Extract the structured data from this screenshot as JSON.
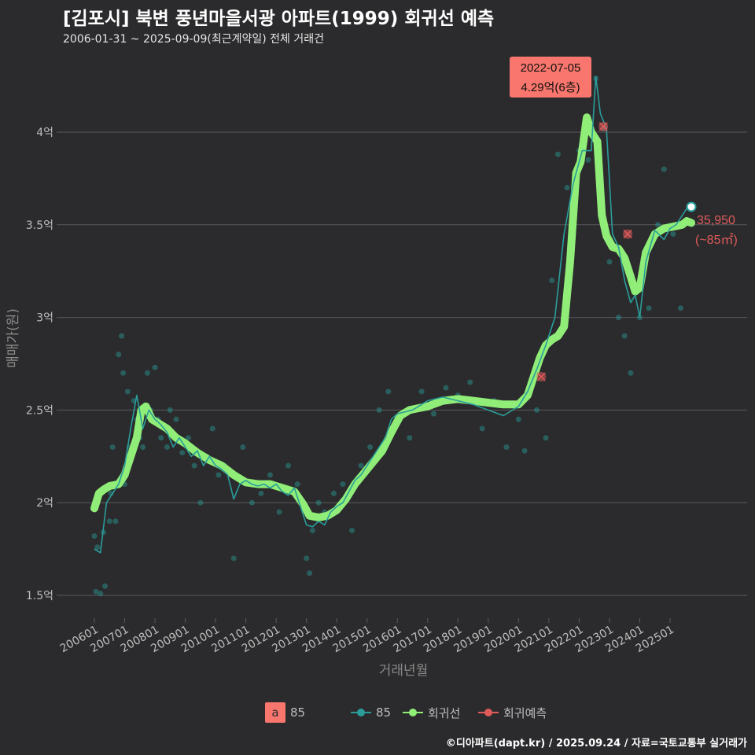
{
  "header": {
    "title": "[김포시] 북변 풍년마을서광 아파트(1999) 회귀선 예측",
    "subtitle": "2006-01-31 ~ 2025-09-09(최근계약일) 전체 거래건"
  },
  "caption": "©디아파트(dapt.kr) / 2025.09.24 / 자료=국토교통부 실거래가",
  "annotations": {
    "peak_date": "2022-07-05",
    "peak_price": "4.29억(6층)",
    "last_price": "35,950",
    "last_area": "(~85㎡)"
  },
  "legend": {
    "a_letter": "a",
    "a_label": "85",
    "series_85": "85",
    "regression": "회귀선",
    "forecast": "회귀예측"
  },
  "colors": {
    "background": "#2b2b2d",
    "grid": "#5a5a5c",
    "series_85": "#2a9d9a",
    "regression": "#90ee78",
    "forecast": "#e05a5a",
    "label_box": "#f8766d"
  },
  "chart_data": {
    "type": "line",
    "title": "[김포시] 북변 풍년마을서광 아파트(1999) 회귀선 예측",
    "xlabel": "거래년월",
    "ylabel": "매매가(원)",
    "ylim": [
      1.4,
      4.5
    ],
    "y_ticks": [
      1.5,
      2,
      2.5,
      3,
      3.5,
      4
    ],
    "y_tick_labels": [
      "1.5억",
      "2억",
      "2.5억",
      "3억",
      "3.5억",
      "4억"
    ],
    "x_ticks": [
      "200601",
      "200701",
      "200801",
      "200901",
      "201001",
      "201101",
      "201201",
      "201301",
      "201401",
      "201501",
      "201601",
      "201701",
      "201801",
      "201901",
      "202001",
      "202101",
      "202201",
      "202301",
      "202401",
      "202501"
    ],
    "series": [
      {
        "name": "회귀선",
        "x": [
          2006.0,
          2006.15,
          2006.3,
          2006.5,
          2006.8,
          2007.0,
          2007.2,
          2007.4,
          2007.55,
          2007.7,
          2007.9,
          2008.1,
          2008.4,
          2008.7,
          2009.0,
          2009.4,
          2009.8,
          2010.2,
          2010.6,
          2011.0,
          2011.4,
          2011.8,
          2012.2,
          2012.6,
          2012.9,
          2013.1,
          2013.4,
          2013.7,
          2014.0,
          2014.3,
          2014.6,
          2014.9,
          2015.2,
          2015.5,
          2015.8,
          2016.1,
          2016.4,
          2016.7,
          2017.0,
          2017.5,
          2018.0,
          2018.5,
          2019.0,
          2019.5,
          2020.0,
          2020.3,
          2020.5,
          2020.7,
          2020.9,
          2021.1,
          2021.3,
          2021.5,
          2021.7,
          2021.9,
          2022.05,
          2022.25,
          2022.4,
          2022.6,
          2022.75,
          2022.9,
          2023.1,
          2023.3,
          2023.5,
          2023.7,
          2023.85,
          2024.0,
          2024.2,
          2024.5,
          2024.8,
          2025.1,
          2025.4,
          2025.55,
          2025.7
        ],
        "values": [
          1.97,
          2.05,
          2.07,
          2.09,
          2.1,
          2.15,
          2.25,
          2.35,
          2.5,
          2.52,
          2.45,
          2.43,
          2.4,
          2.35,
          2.32,
          2.27,
          2.23,
          2.2,
          2.15,
          2.11,
          2.1,
          2.1,
          2.08,
          2.06,
          1.99,
          1.93,
          1.92,
          1.93,
          1.96,
          2.02,
          2.1,
          2.16,
          2.22,
          2.28,
          2.38,
          2.47,
          2.5,
          2.51,
          2.52,
          2.55,
          2.56,
          2.55,
          2.54,
          2.53,
          2.53,
          2.58,
          2.68,
          2.78,
          2.85,
          2.88,
          2.9,
          2.95,
          3.3,
          3.78,
          3.84,
          4.08,
          4.0,
          3.95,
          3.55,
          3.44,
          3.38,
          3.37,
          3.32,
          3.22,
          3.14,
          3.16,
          3.35,
          3.45,
          3.48,
          3.49,
          3.5,
          3.52,
          3.51
        ]
      },
      {
        "name": "85",
        "x": [
          2006.0,
          2006.2,
          2006.4,
          2006.6,
          2006.8,
          2007.0,
          2007.2,
          2007.4,
          2007.6,
          2007.8,
          2008.0,
          2008.2,
          2008.4,
          2008.6,
          2008.8,
          2009.0,
          2009.2,
          2009.4,
          2009.6,
          2009.8,
          2010.0,
          2010.2,
          2010.4,
          2010.6,
          2010.8,
          2011.0,
          2011.2,
          2011.4,
          2011.6,
          2011.8,
          2012.0,
          2012.2,
          2012.4,
          2012.6,
          2012.8,
          2013.0,
          2013.2,
          2013.4,
          2013.6,
          2013.8,
          2014.0,
          2014.2,
          2014.4,
          2014.6,
          2014.8,
          2015.0,
          2015.2,
          2015.4,
          2015.6,
          2015.8,
          2016.0,
          2016.5,
          2017.0,
          2017.5,
          2018.0,
          2018.5,
          2019.0,
          2019.5,
          2020.0,
          2020.3,
          2020.6,
          2020.9,
          2021.2,
          2021.5,
          2021.8,
          2022.1,
          2022.4,
          2022.55,
          2022.7,
          2022.9,
          2023.1,
          2023.3,
          2023.5,
          2023.7,
          2023.85,
          2024.0,
          2024.2,
          2024.5,
          2024.8,
          2025.0,
          2025.2,
          2025.4,
          2025.6
        ],
        "values": [
          1.75,
          1.73,
          2.0,
          2.05,
          2.1,
          2.2,
          2.4,
          2.58,
          2.4,
          2.5,
          2.45,
          2.42,
          2.38,
          2.3,
          2.35,
          2.3,
          2.25,
          2.28,
          2.2,
          2.25,
          2.2,
          2.18,
          2.15,
          2.02,
          2.1,
          2.12,
          2.1,
          2.09,
          2.1,
          2.08,
          2.1,
          2.06,
          2.04,
          2.08,
          1.98,
          1.88,
          1.87,
          1.9,
          1.88,
          1.95,
          1.98,
          2.0,
          2.06,
          2.12,
          2.15,
          2.2,
          2.25,
          2.3,
          2.35,
          2.45,
          2.48,
          2.5,
          2.55,
          2.57,
          2.55,
          2.53,
          2.5,
          2.47,
          2.52,
          2.6,
          2.72,
          2.85,
          3.0,
          3.45,
          3.72,
          3.9,
          3.9,
          4.3,
          4.1,
          4.02,
          3.45,
          3.38,
          3.2,
          3.08,
          3.12,
          3.0,
          3.3,
          3.47,
          3.42,
          3.48,
          3.5,
          3.55,
          3.6
        ]
      },
      {
        "name": "회귀예측",
        "x": [
          2020.75,
          2022.8,
          2023.6
        ],
        "values": [
          2.68,
          4.03,
          3.45
        ]
      }
    ],
    "scatter_85": {
      "x": [
        2006.0,
        2006.05,
        2006.1,
        2006.2,
        2006.3,
        2006.35,
        2006.5,
        2006.55,
        2006.6,
        2006.7,
        2006.8,
        2006.9,
        2006.95,
        2007.0,
        2007.05,
        2007.1,
        2007.15,
        2007.3,
        2007.4,
        2007.5,
        2007.6,
        2007.75,
        2007.85,
        2008.0,
        2008.1,
        2008.2,
        2008.4,
        2008.5,
        2008.7,
        2008.9,
        2009.1,
        2009.3,
        2009.5,
        2009.7,
        2009.9,
        2010.1,
        2010.3,
        2010.6,
        2010.9,
        2011.2,
        2011.5,
        2011.8,
        2012.1,
        2012.4,
        2012.7,
        2013.0,
        2013.1,
        2013.2,
        2013.4,
        2013.6,
        2013.9,
        2014.2,
        2014.5,
        2014.8,
        2015.1,
        2015.4,
        2015.7,
        2016.0,
        2016.4,
        2016.8,
        2017.2,
        2017.6,
        2018.0,
        2018.4,
        2018.8,
        2019.2,
        2019.6,
        2020.0,
        2020.2,
        2020.4,
        2020.6,
        2020.9,
        2021.1,
        2021.3,
        2021.6,
        2021.8,
        2022.0,
        2022.3,
        2022.55,
        2022.8,
        2023.0,
        2023.3,
        2023.5,
        2023.7,
        2024.0,
        2024.3,
        2024.6,
        2024.8,
        2025.1,
        2025.35
      ],
      "values": [
        1.82,
        1.52,
        1.76,
        1.51,
        1.84,
        1.55,
        1.9,
        2.05,
        2.3,
        1.9,
        2.8,
        2.9,
        2.7,
        2.1,
        2.15,
        2.6,
        2.3,
        2.55,
        2.45,
        2.35,
        2.3,
        2.7,
        2.5,
        2.73,
        2.45,
        2.35,
        2.3,
        2.5,
        2.45,
        2.27,
        2.35,
        2.2,
        2.0,
        2.25,
        2.4,
        2.15,
        2.2,
        1.7,
        2.3,
        2.0,
        2.05,
        2.15,
        1.95,
        2.2,
        2.1,
        1.7,
        1.62,
        1.85,
        2.0,
        1.95,
        2.05,
        2.1,
        1.85,
        2.2,
        2.3,
        2.5,
        2.6,
        2.45,
        2.35,
        2.6,
        2.48,
        2.62,
        2.58,
        2.65,
        2.4,
        2.55,
        2.3,
        2.45,
        2.28,
        2.65,
        2.5,
        2.35,
        3.2,
        3.88,
        3.7,
        3.65,
        3.9,
        3.85,
        4.29,
        4.02,
        3.3,
        3.0,
        2.9,
        2.7,
        3.0,
        3.05,
        3.5,
        3.8,
        3.45,
        3.05
      ]
    }
  }
}
